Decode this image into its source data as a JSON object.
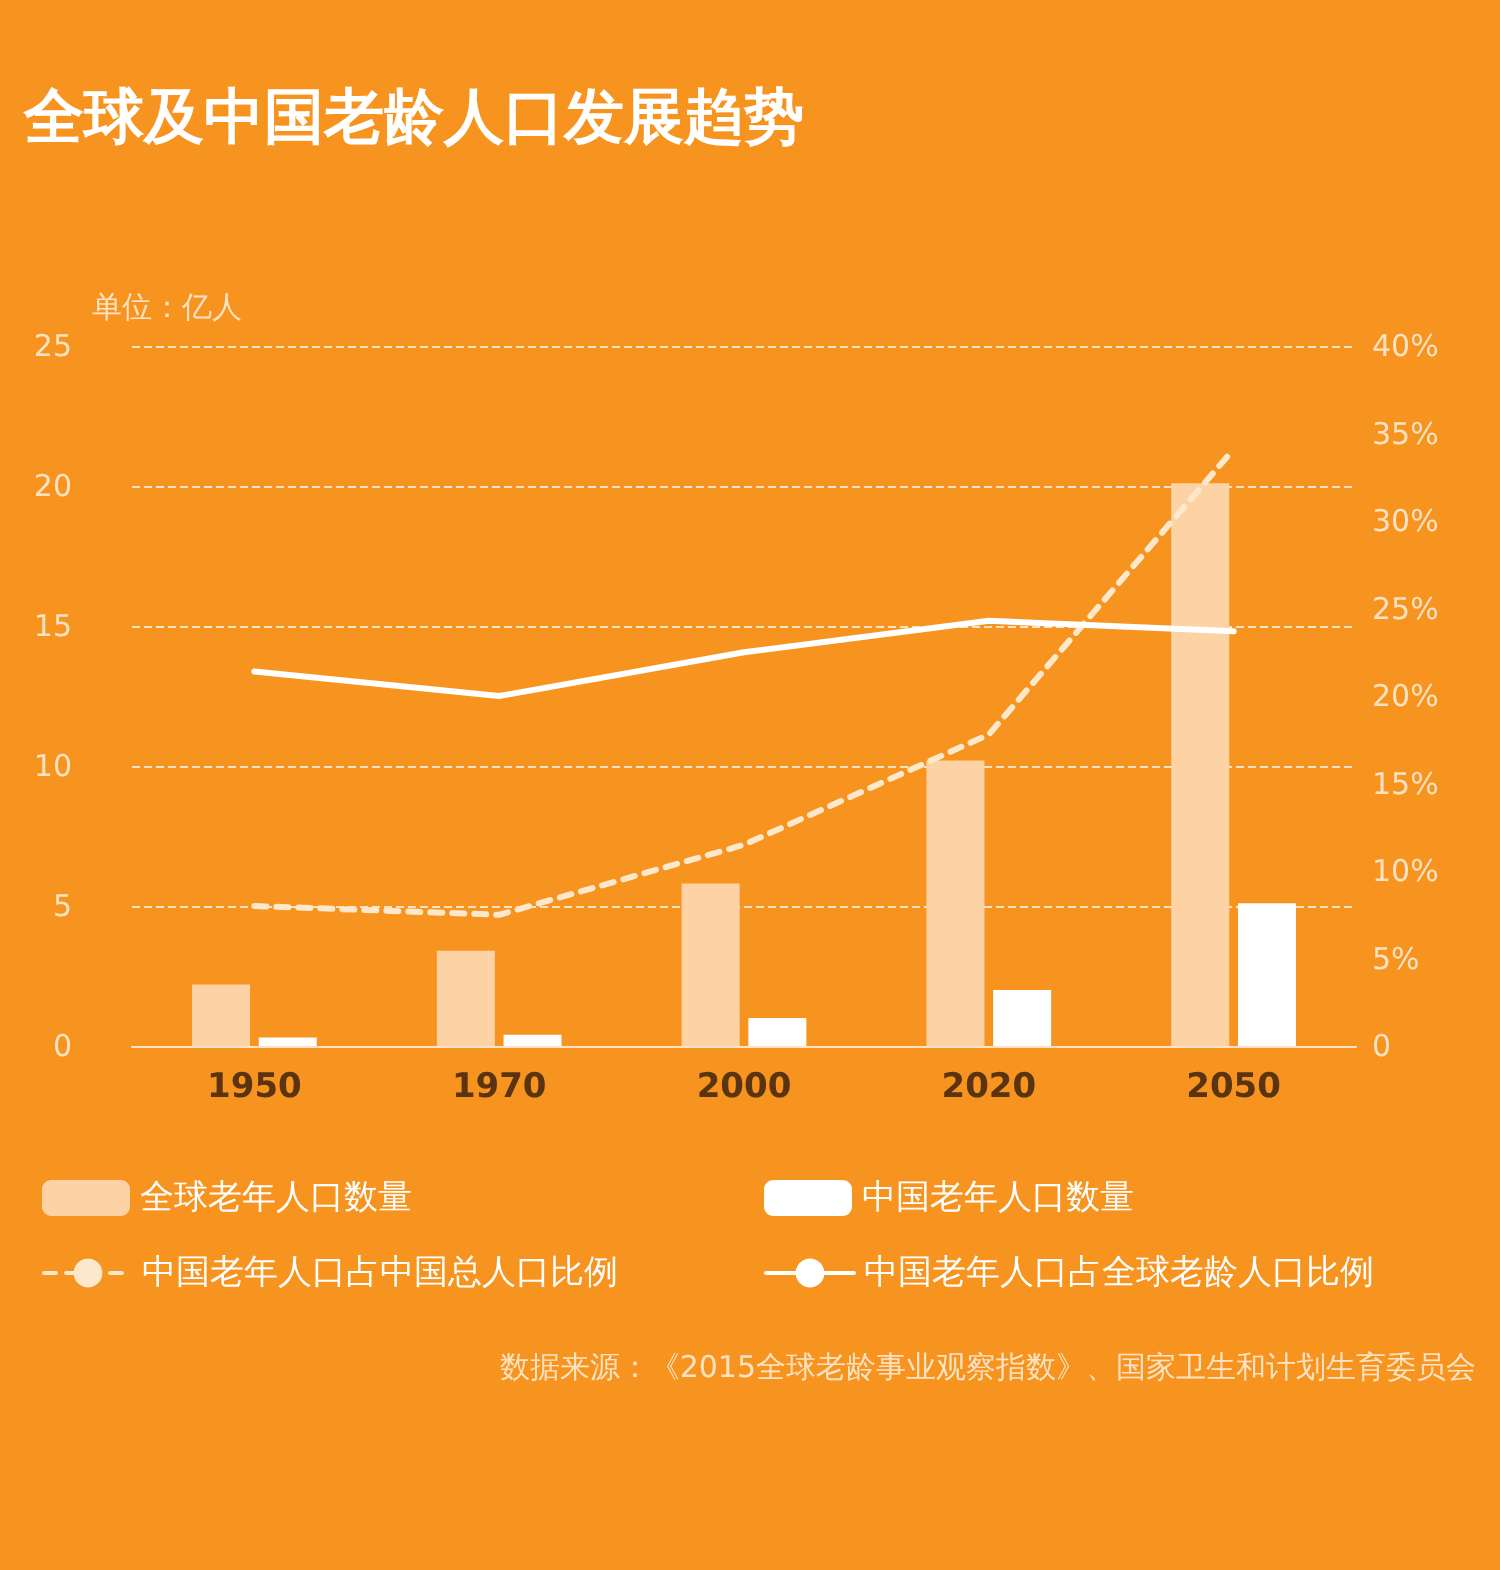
{
  "chart_data": {
    "type": "bar",
    "title": "全球及中国老龄人口发展趋势",
    "ylabel": "单位：亿人",
    "categories": [
      "1950",
      "1970",
      "2000",
      "2020",
      "2050"
    ],
    "series": [
      {
        "name": "全球老年人口数量",
        "color": "#fdd3a6",
        "values": [
          2.2,
          3.4,
          5.8,
          10.2,
          20.1
        ]
      },
      {
        "name": "中国老年人口数量",
        "color": "#ffffff",
        "values": [
          0.3,
          0.4,
          1.0,
          2.0,
          5.1
        ]
      },
      {
        "name": "中国老年人口占中国总人口比例",
        "type": "line",
        "axis": "y2",
        "line_style": "dashed",
        "color": "#fde8cc",
        "values": [
          8.0,
          7.5,
          11.5,
          17.8,
          34.1
        ]
      },
      {
        "name": "中国老年人口占全球老龄人口比例",
        "type": "line",
        "axis": "y2",
        "line_style": "solid",
        "color": "#ffffff",
        "values": [
          21.4,
          20.0,
          22.5,
          24.3,
          23.7
        ]
      }
    ],
    "ylim": [
      0,
      25
    ],
    "yticks": [
      0,
      5,
      10,
      15,
      20,
      25
    ],
    "y2lim": [
      0,
      40
    ],
    "y2ticks": [
      0,
      {
        "value": 5,
        "label": "5%"
      },
      {
        "value": 10,
        "label": "10%"
      },
      {
        "value": 15,
        "label": "15%"
      },
      {
        "value": 20,
        "label": "20%"
      },
      {
        "value": 25,
        "label": "25%"
      },
      {
        "value": 30,
        "label": "30%"
      },
      {
        "value": 35,
        "label": "35%"
      },
      {
        "value": 40,
        "label": "40%"
      }
    ],
    "grid": "y",
    "legend": "bottom",
    "marker": "none",
    "annotations": [
      "数据来源：《2015全球老龄事业观察指数》、国家卫生和计划生育委员会"
    ]
  }
}
